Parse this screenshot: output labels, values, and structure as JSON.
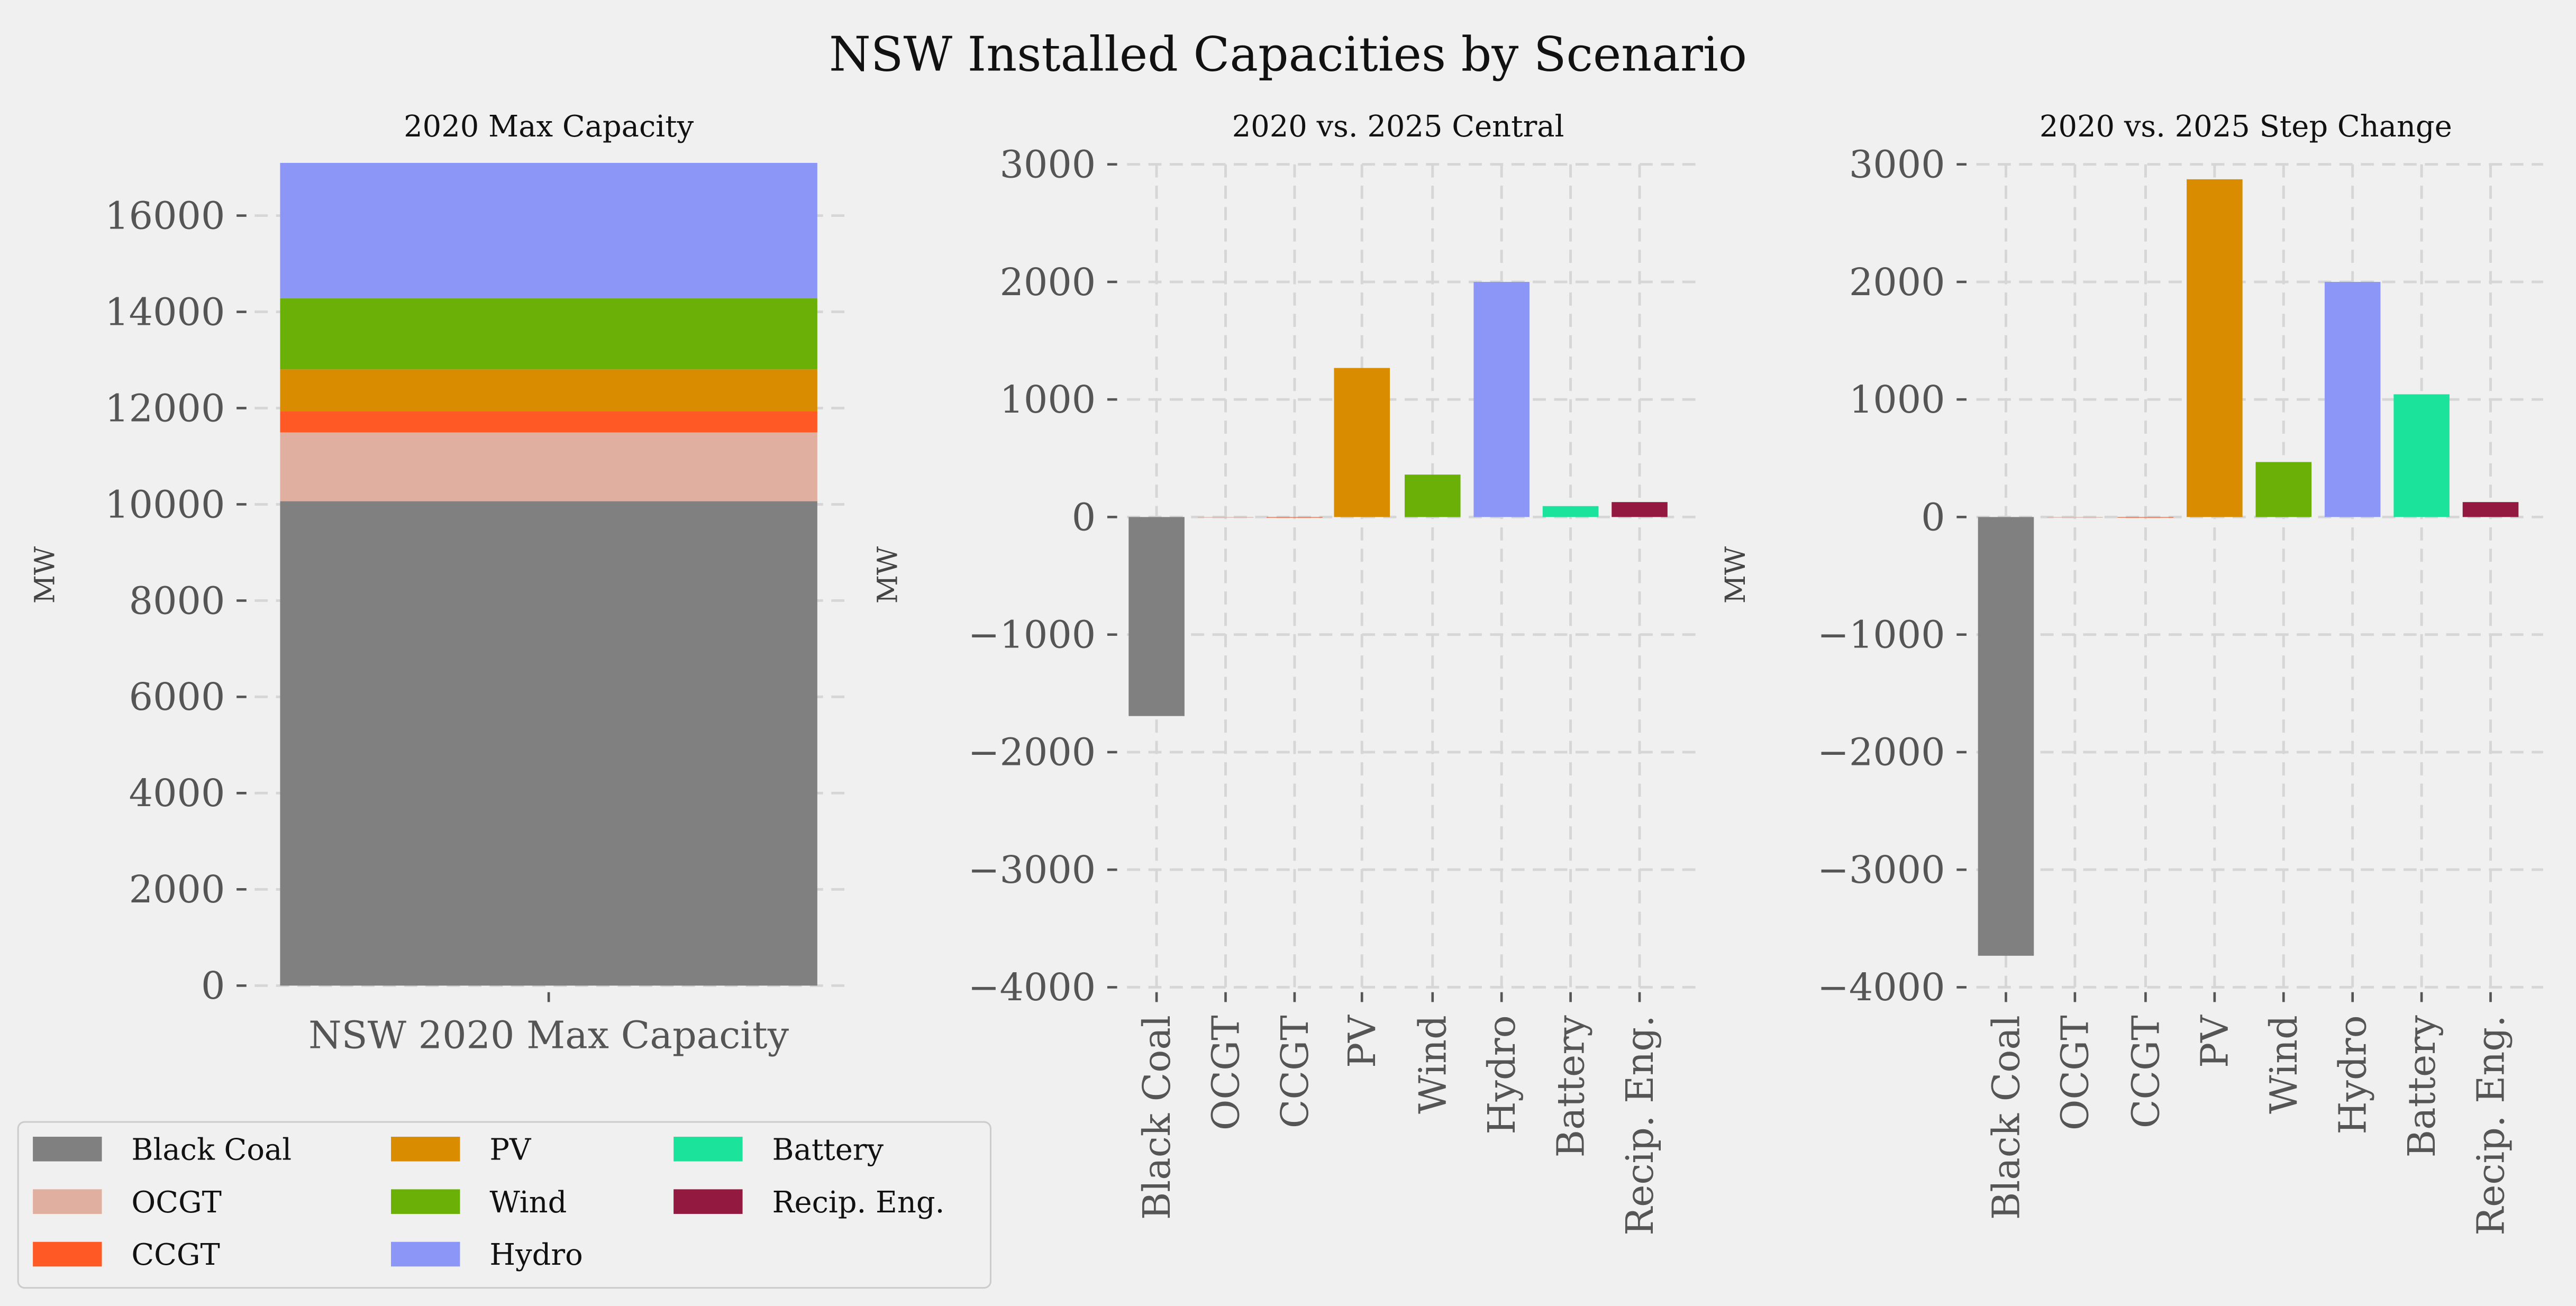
{
  "chart_data": {
    "title": "NSW Installed Capacities by Scenario",
    "technologies": [
      "Black Coal",
      "OCGT",
      "CCGT",
      "PV",
      "Wind",
      "Hydro",
      "Battery",
      "Recip. Eng."
    ],
    "colors": [
      "#808080",
      "#e0af9f",
      "#ff5a26",
      "#d98c00",
      "#6ab007",
      "#8c96f7",
      "#1ce39c",
      "#941941"
    ],
    "legend": {
      "placement": "bottom-left",
      "columns": 3
    },
    "panels": [
      {
        "type": "bar",
        "stacked": true,
        "title": "2020 Max Capacity",
        "ylabel": "MW",
        "categories": [
          "NSW 2020 Max Capacity"
        ],
        "ylim": [
          0,
          17100
        ],
        "yticks": [
          0,
          2000,
          4000,
          6000,
          8000,
          10000,
          12000,
          14000,
          16000
        ],
        "series": [
          {
            "name": "Black Coal",
            "values": [
              10065
            ]
          },
          {
            "name": "OCGT",
            "values": [
              1430
            ]
          },
          {
            "name": "CCGT",
            "values": [
              440
            ]
          },
          {
            "name": "PV",
            "values": [
              870
            ]
          },
          {
            "name": "Wind",
            "values": [
              1475
            ]
          },
          {
            "name": "Hydro",
            "values": [
              2815
            ]
          },
          {
            "name": "Battery",
            "values": [
              0
            ]
          },
          {
            "name": "Recip. Eng.",
            "values": [
              0
            ]
          }
        ]
      },
      {
        "type": "bar",
        "title": "2020 vs. 2025 Central",
        "ylabel": "MW",
        "categories": [
          "Black Coal",
          "OCGT",
          "CCGT",
          "PV",
          "Wind",
          "Hydro",
          "Battery",
          "Recip. Eng."
        ],
        "values": [
          -1693,
          0,
          0,
          1268,
          361,
          2000,
          93,
          127
        ],
        "ylim": [
          -4000,
          3000
        ],
        "yticks": [
          -4000,
          -3000,
          -2000,
          -1000,
          0,
          1000,
          2000,
          3000
        ]
      },
      {
        "type": "bar",
        "title": "2020 vs. 2025 Step Change",
        "ylabel": "MW",
        "categories": [
          "Black Coal",
          "OCGT",
          "CCGT",
          "PV",
          "Wind",
          "Hydro",
          "Battery",
          "Recip. Eng."
        ],
        "values": [
          -3732,
          0,
          0,
          2873,
          468,
          2000,
          1044,
          127
        ],
        "ylim": [
          -4000,
          3000
        ],
        "yticks": [
          -4000,
          -3000,
          -2000,
          -1000,
          0,
          1000,
          2000,
          3000
        ]
      }
    ]
  }
}
